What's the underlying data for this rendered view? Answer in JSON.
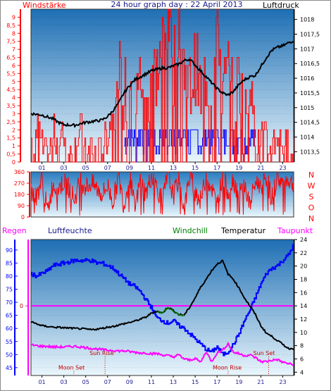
{
  "colors": {
    "red": "#ff0000",
    "blue": "#0000ff",
    "navy": "#1a1a8c",
    "black": "#000000",
    "magenta": "#ff00ff",
    "green": "#008000",
    "darkred": "#c00000",
    "darkmagenta": "#b000b0",
    "bg_top": "#1e6fb4",
    "bg_bottom": "#eaf6fc"
  },
  "chart_data": [
    {
      "type": "line",
      "title": "24 hour graph day : 22 April 2013",
      "left_label": "Windstärke",
      "right_label": "Luftdruck",
      "xlabels": [
        "01",
        "03",
        "05",
        "07",
        "09",
        "11",
        "13",
        "15",
        "17",
        "19",
        "21",
        "23"
      ],
      "left_ticks": [
        "0",
        "0,5",
        "1",
        "1,5",
        "2",
        "2,5",
        "3",
        "3,5",
        "4",
        "4,5",
        "5",
        "5,5",
        "6",
        "6,5",
        "7",
        "7,5",
        "8",
        "8,5",
        "9"
      ],
      "right_ticks": [
        "1013,5",
        "1014",
        "1014,5",
        "1015",
        "1015,5",
        "1016",
        "1016,5",
        "1017",
        "1017,5",
        "1018"
      ],
      "ylim_left": [
        0,
        9.5
      ],
      "ylim_right": [
        1013.15,
        1018.35
      ],
      "series": [
        {
          "role": "pressure",
          "x": [
            0,
            1,
            2,
            2.5,
            3,
            4,
            5,
            6,
            6.5,
            7,
            7.5,
            8,
            8.5,
            9,
            9.5,
            10,
            10.5,
            11,
            11.5,
            12,
            12.5,
            13,
            13.5,
            14,
            14.5,
            15,
            15.5,
            16,
            16.5,
            17,
            17.5,
            18,
            18.5,
            19,
            19.5,
            20,
            20.5,
            21,
            21.5,
            22,
            22.5,
            23,
            23.5,
            24
          ],
          "y": [
            1014.8,
            1014.75,
            1014.62,
            1014.5,
            1014.42,
            1014.4,
            1014.5,
            1014.55,
            1014.58,
            1014.7,
            1014.9,
            1015.15,
            1015.5,
            1015.75,
            1015.95,
            1016.05,
            1016.15,
            1016.25,
            1016.3,
            1016.35,
            1016.35,
            1016.42,
            1016.48,
            1016.6,
            1016.65,
            1016.45,
            1016.25,
            1016.05,
            1015.85,
            1015.65,
            1015.5,
            1015.42,
            1015.55,
            1015.78,
            1015.95,
            1016.05,
            1016.1,
            1016.4,
            1016.7,
            1016.95,
            1017.05,
            1017.1,
            1017.2,
            1017.28
          ]
        },
        {
          "role": "wind_speed",
          "x": [
            0,
            0.5,
            1,
            1.5,
            2,
            2.5,
            3,
            3.5,
            4,
            4.5,
            5,
            5.5,
            6,
            6.5,
            7,
            7.5,
            8,
            8.5,
            9,
            9.5,
            10,
            10.5,
            11,
            11.5,
            12,
            12.5,
            13,
            13.5,
            14,
            14.5,
            15,
            15.5,
            16,
            16.5,
            17,
            17.5,
            18,
            18.5,
            19,
            19.5,
            20,
            20.5,
            21,
            21.5,
            22,
            22.5,
            23,
            23.5
          ],
          "y": [
            1,
            2,
            1,
            0,
            2,
            1,
            2,
            0,
            1,
            2,
            0,
            1,
            0,
            1,
            2,
            3,
            5.5,
            4,
            5.5,
            3,
            5.5,
            3,
            6,
            5.5,
            7.5,
            9.5,
            6,
            9.5,
            5.5,
            4.5,
            6,
            4,
            5.5,
            3,
            9.5,
            4,
            5.5,
            3,
            5.5,
            2,
            5.5,
            1,
            2,
            1,
            1,
            2,
            1,
            1
          ]
        },
        {
          "role": "wind_gust",
          "x": [
            8.5,
            9,
            9.5,
            10,
            10.5,
            11,
            11.5,
            12,
            12.5,
            13,
            13.5,
            14,
            14.5,
            15,
            15.5,
            16,
            16.5,
            17,
            17.5,
            18,
            18.5,
            19,
            19.5,
            20,
            20.5
          ],
          "y": [
            1,
            2,
            1,
            2,
            1,
            2,
            1,
            2,
            1,
            2,
            1,
            2,
            1,
            2,
            1,
            2,
            1,
            2,
            1,
            2,
            1,
            2,
            1,
            2,
            1
          ]
        }
      ]
    },
    {
      "type": "line",
      "title": "",
      "left_ticks": [
        "0",
        "90",
        "180",
        "270",
        "360"
      ],
      "right_labels": [
        "N",
        "W",
        "S",
        "O",
        "N"
      ],
      "ylim": [
        0,
        360
      ],
      "series": [
        {
          "role": "wind_direction",
          "x": [
            0,
            0.5,
            1,
            1.5,
            2,
            2.5,
            3,
            3.5,
            4,
            4.5,
            5,
            5.5,
            6,
            6.5,
            7,
            7.5,
            8,
            8.5,
            9,
            9.5,
            10,
            10.5,
            11,
            11.5,
            12,
            12.5,
            13,
            13.5,
            14,
            14.5,
            15,
            15.5,
            16,
            16.5,
            17,
            17.5,
            18,
            18.5,
            19,
            19.5,
            20,
            20.5,
            21,
            21.5,
            22,
            22.5,
            23,
            23.5,
            24
          ],
          "y": [
            200,
            160,
            310,
            40,
            260,
            230,
            280,
            230,
            140,
            300,
            240,
            270,
            230,
            180,
            250,
            120,
            320,
            90,
            330,
            60,
            300,
            180,
            330,
            240,
            120,
            340,
            170,
            300,
            60,
            330,
            210,
            130,
            320,
            240,
            90,
            330,
            200,
            300,
            170,
            260,
            90,
            280,
            250,
            320,
            140,
            320,
            270,
            300,
            260
          ]
        }
      ]
    },
    {
      "type": "line",
      "title": "",
      "labels": [
        "Regen",
        "Luftfeuchte",
        "Windchill",
        "Temperatur",
        "Taupunkt"
      ],
      "left_ticks": [
        "45",
        "50",
        "55",
        "60",
        "65",
        "70",
        "75",
        "80",
        "85",
        "90"
      ],
      "right_ticks": [
        "4",
        "6",
        "8",
        "10",
        "12",
        "14",
        "16",
        "18",
        "20",
        "22",
        "24"
      ],
      "rain_tick": "0",
      "ylim_humidity": [
        42,
        94
      ],
      "ylim_temperature": [
        3.5,
        24
      ],
      "events": [
        {
          "label": "Sun Rise",
          "x": 5.35,
          "y": 6.6
        },
        {
          "label": "Moon Set",
          "x": 2.5,
          "y": 4.4
        },
        {
          "label": "Moon Rise",
          "x": 16.6,
          "y": 4.4
        },
        {
          "label": "Sun Set",
          "x": 20.3,
          "y": 6.6
        }
      ],
      "rain_level": 14,
      "series": [
        {
          "role": "humidity",
          "x": [
            0,
            0.5,
            1,
            1.5,
            2,
            3,
            4,
            5,
            5.5,
            6,
            6.5,
            7,
            7.5,
            8,
            8.5,
            9,
            9.5,
            10,
            10.5,
            11,
            11.5,
            12,
            12.5,
            13,
            13.5,
            14,
            14.5,
            15,
            15.5,
            16,
            16.5,
            17,
            17.5,
            18,
            18.5,
            19,
            19.5,
            20,
            20.5,
            21,
            21.5,
            22,
            22.5,
            23,
            23.5,
            24
          ],
          "y": [
            81,
            80,
            81,
            82,
            84,
            85,
            86,
            86,
            86,
            85,
            85,
            84,
            83,
            81,
            79,
            77,
            76,
            74,
            71,
            68,
            64,
            63,
            62,
            63,
            61,
            60,
            58,
            56,
            54,
            52,
            51,
            53,
            50,
            51,
            54,
            58,
            63,
            67,
            72,
            77,
            81,
            83,
            84,
            86,
            88,
            92
          ]
        },
        {
          "role": "temperature",
          "x": [
            0,
            0.5,
            1,
            1.5,
            2,
            3,
            4,
            5,
            5.5,
            6,
            6.5,
            7,
            7.5,
            8,
            8.5,
            9,
            9.5,
            10,
            10.5,
            11,
            11.5,
            12,
            12.5,
            13,
            13.5,
            14,
            14.5,
            15,
            15.5,
            16,
            16.5,
            17,
            17.5,
            18,
            18.5,
            19,
            19.5,
            20,
            20.5,
            21,
            21.5,
            22,
            22.5,
            23,
            23.5,
            24
          ],
          "y": [
            11.6,
            11.3,
            11.0,
            10.9,
            10.8,
            10.7,
            10.6,
            10.5,
            10.4,
            10.5,
            10.6,
            10.8,
            10.9,
            11.1,
            11.3,
            11.5,
            11.7,
            12.0,
            12.3,
            12.9,
            13.2,
            12.9,
            13.8,
            13.3,
            12.7,
            12.6,
            13.8,
            15.2,
            16.8,
            18.0,
            19.3,
            20.3,
            20.8,
            18.8,
            18.0,
            16.7,
            15.2,
            14.0,
            12.7,
            11.0,
            9.9,
            9.4,
            8.8,
            8.2,
            7.6,
            7.5
          ]
        },
        {
          "role": "dew_point",
          "x": [
            0,
            0.5,
            1,
            1.5,
            2,
            3,
            4,
            5,
            5.5,
            6,
            6.5,
            7,
            7.5,
            8,
            8.5,
            9,
            9.5,
            10,
            10.5,
            11,
            11.5,
            12,
            12.5,
            13,
            13.5,
            14,
            14.5,
            15,
            15.5,
            16,
            16.5,
            17,
            17.5,
            18,
            18.5,
            19,
            19.5,
            20,
            20.5,
            21,
            21.5,
            22,
            22.5,
            23,
            23.5,
            24
          ],
          "y": [
            8.1,
            8.0,
            7.9,
            7.9,
            7.8,
            7.8,
            7.9,
            7.7,
            7.6,
            7.5,
            7.4,
            7.3,
            7.3,
            7.2,
            7.2,
            7.1,
            7.0,
            6.9,
            6.9,
            6.8,
            6.8,
            6.6,
            6.5,
            6.3,
            6.6,
            6.0,
            5.8,
            6.1,
            5.5,
            7.1,
            5.6,
            6.9,
            7.3,
            8.3,
            7.0,
            6.8,
            6.5,
            6.6,
            6.2,
            5.6,
            5.6,
            5.8,
            5.9,
            5.5,
            5.3,
            5.1
          ]
        },
        {
          "role": "windchill",
          "x": [
            11.5,
            12,
            12.5,
            13,
            13.5,
            14
          ],
          "y": [
            13.2,
            12.9,
            13.7,
            13.2,
            12.6,
            12.6
          ]
        }
      ]
    }
  ]
}
